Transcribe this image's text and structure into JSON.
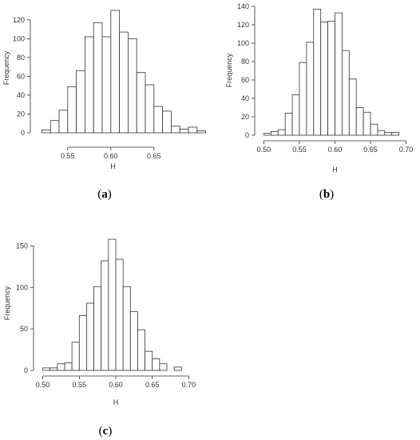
{
  "chart_data": [
    {
      "type": "bar",
      "panel_label": "a",
      "xlabel": "H",
      "ylabel": "Frequency",
      "xlim": [
        0.515,
        0.69
      ],
      "ylim": [
        0,
        130
      ],
      "x_ticks": [
        "0.55",
        "0.60",
        "0.65"
      ],
      "x_tick_values": [
        0.55,
        0.6,
        0.65
      ],
      "y_ticks": [
        "0",
        "20",
        "40",
        "60",
        "80",
        "100",
        "120"
      ],
      "y_tick_values": [
        0,
        20,
        40,
        60,
        80,
        100,
        120
      ],
      "bin_start": 0.52,
      "bin_width": 0.01,
      "values": [
        3,
        13,
        24,
        49,
        66,
        102,
        117,
        102,
        130,
        107,
        100,
        64,
        51,
        28,
        23,
        7,
        4,
        6,
        2
      ]
    },
    {
      "type": "bar",
      "panel_label": "b",
      "xlabel": "H",
      "ylabel": "Frequency",
      "xlim": [
        0.495,
        0.705
      ],
      "ylim": [
        0,
        140
      ],
      "x_ticks": [
        "0.50",
        "0.55",
        "0.60",
        "0.65",
        "0.70"
      ],
      "x_tick_values": [
        0.5,
        0.55,
        0.6,
        0.65,
        0.7
      ],
      "y_ticks": [
        "0",
        "20",
        "40",
        "60",
        "80",
        "100",
        "120",
        "140"
      ],
      "y_tick_values": [
        0,
        20,
        40,
        60,
        80,
        100,
        120,
        140
      ],
      "bin_start": 0.5,
      "bin_width": 0.01,
      "values": [
        2,
        4,
        6,
        24,
        44,
        79,
        101,
        137,
        123,
        124,
        133,
        92,
        61,
        30,
        25,
        12,
        5,
        3,
        3
      ]
    },
    {
      "type": "bar",
      "panel_label": "c",
      "xlabel": "H",
      "ylabel": "Frequency",
      "xlim": [
        0.495,
        0.705
      ],
      "ylim": [
        0,
        160
      ],
      "x_ticks": [
        "0.50",
        "0.55",
        "0.60",
        "0.65",
        "0.70"
      ],
      "x_tick_values": [
        0.5,
        0.55,
        0.6,
        0.65,
        0.7
      ],
      "y_ticks": [
        "0",
        "50",
        "100",
        "150"
      ],
      "y_tick_values": [
        0,
        50,
        100,
        150
      ],
      "bin_start": 0.5,
      "bin_width": 0.01,
      "values": [
        3,
        3,
        8,
        9,
        34,
        66,
        81,
        101,
        132,
        158,
        134,
        101,
        71,
        49,
        23,
        14,
        8,
        0,
        4
      ]
    }
  ],
  "panel_labels": {
    "a": "(a)",
    "b": "(b)",
    "c": "(c)"
  }
}
